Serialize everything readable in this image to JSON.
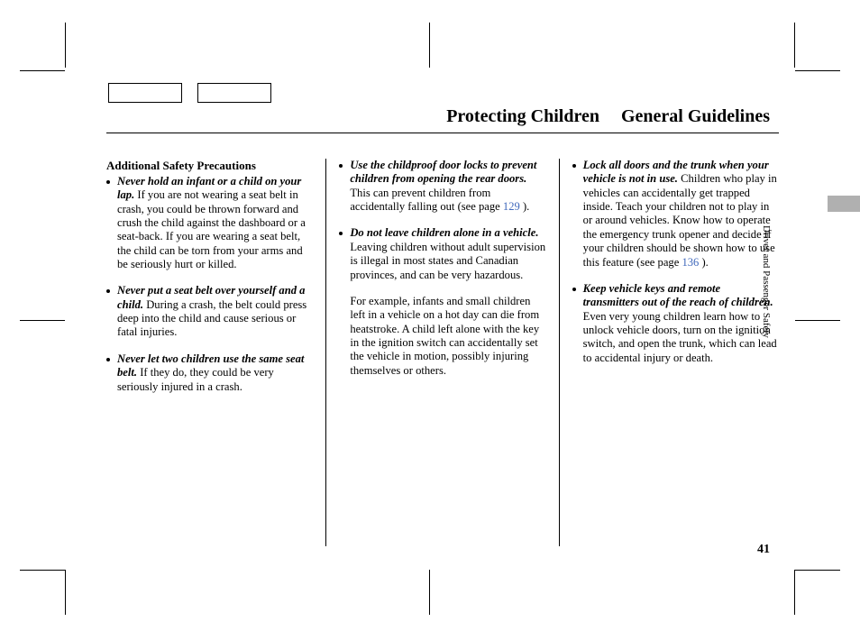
{
  "header": {
    "title_left": "Protecting Children",
    "title_right": "General Guidelines"
  },
  "side_label": "Driver and Passenger Safety",
  "page_number": "41",
  "col1": {
    "section_heading": "Additional Safety Precautions",
    "items": [
      {
        "lead": "Never hold an infant or a child on your lap.",
        "body": " If you are not wearing a seat belt in crash, you could be thrown forward and crush the child against the dashboard or a seat-back. If you are wearing a seat belt, the child can be torn from your arms and be seriously hurt or killed."
      },
      {
        "lead": "Never put a seat belt over yourself and a child.",
        "body": " During a crash, the belt could press deep into the child and cause serious or fatal injuries."
      },
      {
        "lead": "Never let two children use the same seat belt.",
        "body": " If they do, they could be very seriously injured in a crash."
      }
    ]
  },
  "col2": {
    "items": [
      {
        "lead": "Use the childproof door locks to prevent children from opening the rear doors.",
        "body_pre": " This can prevent children from accidentally falling out (see page ",
        "page_ref": "129",
        "body_post": " )."
      },
      {
        "lead": "Do not leave children alone in a vehicle.",
        "body": " Leaving children without adult supervision is illegal in most states and Canadian provinces, and can be very hazardous."
      }
    ],
    "extra": "For example, infants and small children left in a vehicle on a hot day can die from heatstroke. A child left alone with the key in the ignition switch can accidentally set the vehicle in motion, possibly injuring themselves or others."
  },
  "col3": {
    "items": [
      {
        "lead": "Lock all doors and the trunk when your vehicle is not in use.",
        "body_pre": " Children who play in vehicles can accidentally get trapped inside. Teach your children not to play in or around vehicles. Know how to operate the emergency trunk opener and decide if your children should be shown how to use this feature (see page ",
        "page_ref": "136",
        "body_post": " )."
      },
      {
        "lead": "Keep vehicle keys and remote transmitters out of the reach of children.",
        "body": " Even very young children learn how to unlock vehicle doors, turn on the ignition switch, and open the trunk, which can lead to accidental injury or death."
      }
    ]
  }
}
